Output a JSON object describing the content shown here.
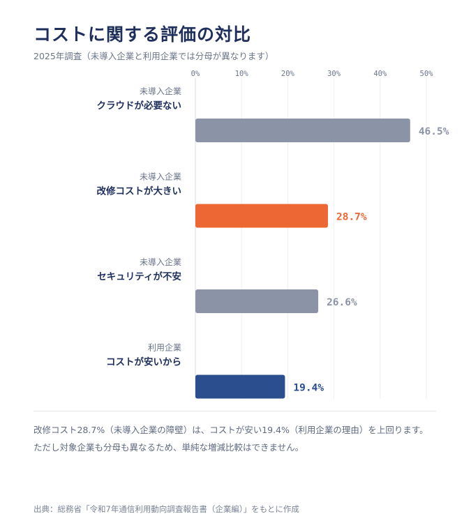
{
  "title": "コストに関する評価の対比",
  "subtitle": "2025年調査（未導入企業と利用企業では分母が異なります）",
  "chart_data": {
    "type": "bar",
    "orientation": "horizontal",
    "x_ticks": [
      "0%",
      "10%",
      "20%",
      "30%",
      "40%",
      "50%"
    ],
    "xlim": [
      0,
      50
    ],
    "grid": true,
    "items": [
      {
        "group": "未導入企業",
        "label": "クラウドが必要ない",
        "value": 46.5,
        "value_label": "46.5%",
        "color": "#8b93a6",
        "label_color": "#8b93a6"
      },
      {
        "group": "未導入企業",
        "label": "改修コストが大きい",
        "value": 28.7,
        "value_label": "28.7%",
        "color": "#ec6733",
        "label_color": "#ec6733"
      },
      {
        "group": "未導入企業",
        "label": "セキュリティが不安",
        "value": 26.6,
        "value_label": "26.6%",
        "color": "#8b93a6",
        "label_color": "#8b93a6"
      },
      {
        "group": "利用企業",
        "label": "コストが安いから",
        "value": 19.4,
        "value_label": "19.4%",
        "color": "#2b4f8e",
        "label_color": "#2b4f8e"
      }
    ]
  },
  "note": {
    "line1": "改修コスト28.7%（未導入企業の障壁）は、コストが安い19.4%（利用企業の理由）を上回ります。",
    "line2": "ただし対象企業も分母も異なるため、単純な増減比較はできません。"
  },
  "source": "出典：総務省「令和7年通信利用動向調査報告書（企業編）」をもとに作成"
}
